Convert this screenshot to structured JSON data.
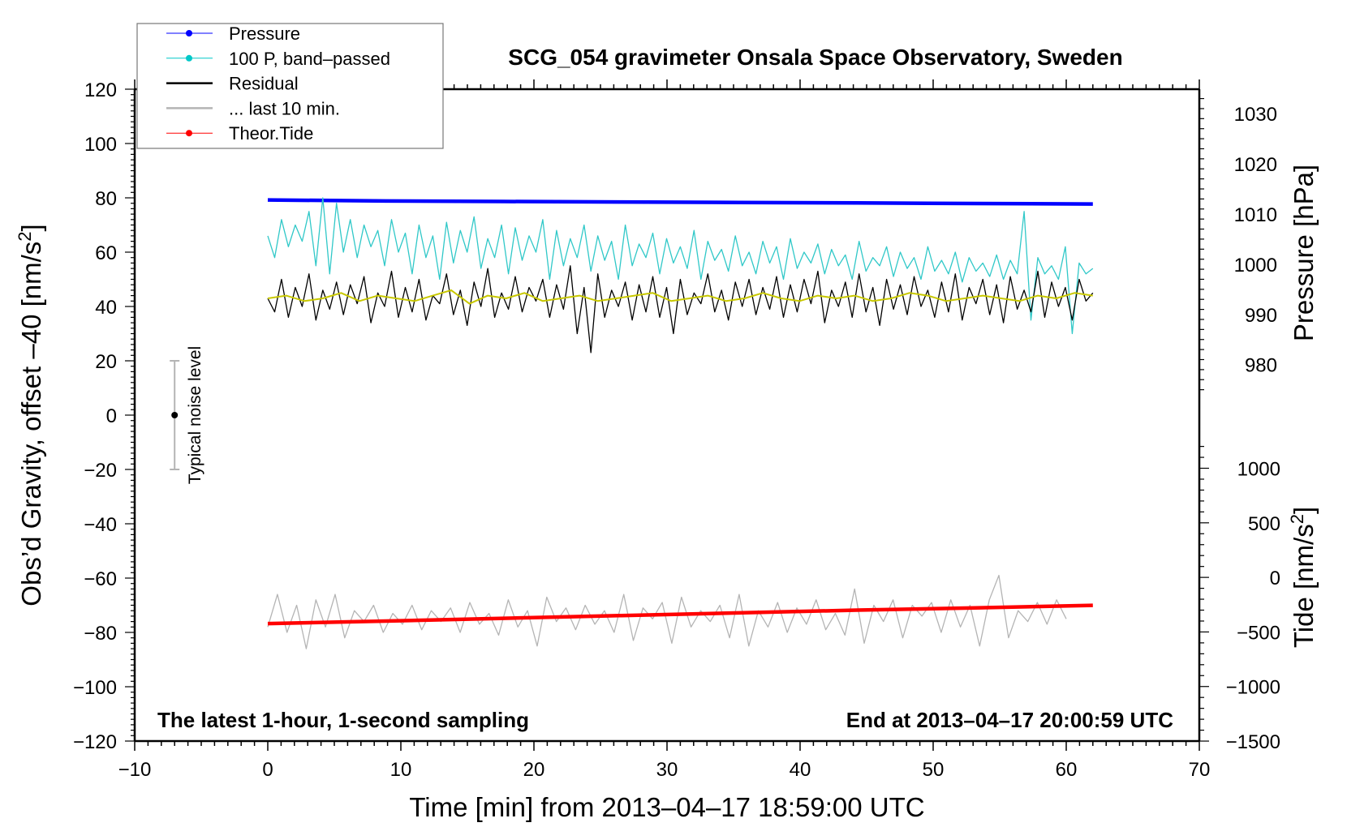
{
  "chart_data": {
    "type": "line",
    "title": "SCG_054 gravimeter Onsala Space Observatory, Sweden",
    "xlabel": "Time [min] from 2013–04–17 18:59:00 UTC",
    "ylabel": "Obs’d Gravity, offset –40 [nm/s",
    "ylabel_sup": "2",
    "ylabel_tail": "]",
    "ylabel_right_pressure": "Pressure [hPa]",
    "ylabel_right_tide": "Tide [nm/s",
    "ylabel_right_tide_sup": "2",
    "ylabel_right_tide_tail": "]",
    "annotation_left": "The latest 1-hour, 1-second sampling",
    "annotation_right": "End at 2013–04–17 20:00:59 UTC",
    "noise_label": "Typical noise level",
    "noise_bar": {
      "x": -7,
      "center": 0,
      "low": -20,
      "high": 20
    },
    "xlim": [
      -10,
      70
    ],
    "ylim": [
      -120,
      120
    ],
    "xticks": [
      -10,
      0,
      10,
      20,
      30,
      40,
      50,
      60,
      70
    ],
    "xtick_labels": [
      "−10",
      "0",
      "10",
      "20",
      "30",
      "40",
      "50",
      "60",
      "70"
    ],
    "yticks": [
      120,
      100,
      80,
      60,
      40,
      20,
      0,
      -20,
      -40,
      -60,
      -80,
      -100,
      -120
    ],
    "ytick_labels": [
      "120",
      "100",
      "80",
      "60",
      "40",
      "20",
      "0",
      "−20",
      "−40",
      "−60",
      "−80",
      "−100",
      "−120"
    ],
    "pressure_ticks": [
      1030,
      1020,
      1010,
      1000,
      990,
      980
    ],
    "pressure_tick_labels": [
      "1030",
      "1020",
      "1010",
      "1000",
      "990",
      "980"
    ],
    "tide_ticks": [
      1000,
      500,
      0,
      -500,
      -1000,
      -1500
    ],
    "tide_tick_labels": [
      "1000",
      "500",
      "0",
      "−500",
      "−1000",
      "−1500"
    ],
    "legend": {
      "placement": "top-left",
      "entries": [
        {
          "label": "Pressure",
          "color": "#0000ff",
          "marker": true
        },
        {
          "label": "100 P, band–passed",
          "color": "#00c8c8",
          "marker": true
        },
        {
          "label": "Residual",
          "color": "#000000",
          "marker": false
        },
        {
          "label": "... last 10 min.",
          "color": "#b4b4b4",
          "marker": false
        },
        {
          "label": "Theor.Tide",
          "color": "#ff0000",
          "marker": true
        }
      ]
    },
    "series": [
      {
        "name": "Pressure",
        "axis": "pressure_hPa",
        "color": "#0000ff",
        "x_range": [
          0,
          62
        ],
        "values": [
          1012.8,
          1012.6,
          1012.5,
          1012.4,
          1012.3,
          1012.2,
          1012.1,
          1012.0
        ]
      },
      {
        "name": "100 P, band-passed",
        "axis": "left",
        "color": "#30c8c8",
        "x_range": [
          0,
          62
        ],
        "values": [
          66,
          58,
          72,
          62,
          70,
          64,
          75,
          55,
          80,
          52,
          78,
          60,
          72,
          58,
          70,
          62,
          68,
          55,
          72,
          60,
          67,
          52,
          70,
          58,
          66,
          50,
          71,
          56,
          68,
          60,
          73,
          54,
          65,
          58,
          70,
          52,
          69,
          57,
          66,
          60,
          72,
          50,
          68,
          55,
          65,
          58,
          70,
          53,
          66,
          57,
          64,
          50,
          70,
          55,
          63,
          58,
          67,
          52,
          65,
          56,
          62,
          54,
          68,
          50,
          64,
          57,
          61,
          53,
          66,
          55,
          60,
          52,
          64,
          56,
          62,
          50,
          65,
          54,
          60,
          56,
          63,
          52,
          61,
          55,
          59,
          50,
          64,
          53,
          58,
          55,
          62,
          51,
          60,
          54,
          58,
          50,
          62,
          53,
          57,
          52,
          60,
          49,
          58,
          53,
          56,
          51,
          59,
          50,
          57,
          52,
          75,
          35,
          58,
          52,
          55,
          50,
          62,
          30,
          56,
          52,
          54
        ]
      },
      {
        "name": "Residual",
        "axis": "left",
        "color": "#000000",
        "x_range": [
          0,
          62
        ],
        "values": [
          43,
          38,
          50,
          36,
          47,
          40,
          52,
          35,
          46,
          39,
          49,
          37,
          48,
          41,
          51,
          34,
          45,
          40,
          53,
          36,
          47,
          38,
          50,
          35,
          44,
          41,
          52,
          37,
          46,
          33,
          49,
          40,
          54,
          36,
          45,
          39,
          51,
          38,
          47,
          42,
          50,
          36,
          48,
          39,
          55,
          30,
          47,
          23,
          52,
          36,
          46,
          40,
          49,
          35,
          48,
          38,
          51,
          36,
          47,
          30,
          50,
          37,
          45,
          41,
          52,
          38,
          46,
          35,
          49,
          40,
          50,
          37,
          47,
          39,
          51,
          36,
          48,
          38,
          50,
          41,
          53,
          34,
          46,
          40,
          49,
          36,
          52,
          38,
          47,
          33,
          50,
          39,
          48,
          37,
          51,
          40,
          46,
          36,
          49,
          38,
          52,
          35,
          47,
          41,
          50,
          37,
          48,
          34,
          51,
          39,
          46,
          38,
          53,
          36,
          49,
          40,
          47,
          35,
          50,
          42,
          45
        ]
      },
      {
        "name": "Residual smoothed",
        "axis": "left",
        "color": "#c8c800",
        "x_range": [
          0,
          62
        ],
        "values": [
          43,
          44,
          42,
          43,
          45,
          42,
          44,
          43,
          42,
          44,
          46,
          41,
          44,
          43,
          45,
          42,
          43,
          44,
          42,
          43,
          44,
          45,
          42,
          43,
          44,
          42,
          43,
          45,
          43,
          42,
          44,
          43,
          44,
          42,
          43,
          45,
          44,
          42,
          43,
          44,
          43,
          42,
          44,
          43,
          45,
          44
        ]
      },
      {
        "name": "... last 10 min.",
        "axis": "left",
        "color": "#b4b4b4",
        "x_range": [
          0,
          60
        ],
        "values": [
          -78,
          -66,
          -80,
          -70,
          -86,
          -68,
          -78,
          -66,
          -82,
          -72,
          -76,
          -70,
          -80,
          -73,
          -77,
          -70,
          -79,
          -72,
          -76,
          -71,
          -80,
          -69,
          -77,
          -73,
          -81,
          -68,
          -78,
          -72,
          -85,
          -67,
          -76,
          -71,
          -79,
          -70,
          -77,
          -72,
          -80,
          -66,
          -83,
          -71,
          -75,
          -69,
          -84,
          -67,
          -78,
          -72,
          -76,
          -70,
          -82,
          -66,
          -85,
          -72,
          -78,
          -69,
          -80,
          -71,
          -77,
          -68,
          -79,
          -73,
          -81,
          -64,
          -84,
          -70,
          -76,
          -68,
          -82,
          -70,
          -74,
          -69,
          -80,
          -68,
          -78,
          -70,
          -85,
          -68,
          -59,
          -82,
          -72,
          -76,
          -69,
          -77,
          -68,
          -75
        ]
      },
      {
        "name": "Theor.Tide",
        "axis": "tide_nm_s2",
        "color": "#ff0000",
        "x_range": [
          0,
          62
        ],
        "values": [
          -423,
          -400,
          -375,
          -350,
          -325,
          -300,
          -280,
          -256
        ]
      }
    ]
  }
}
